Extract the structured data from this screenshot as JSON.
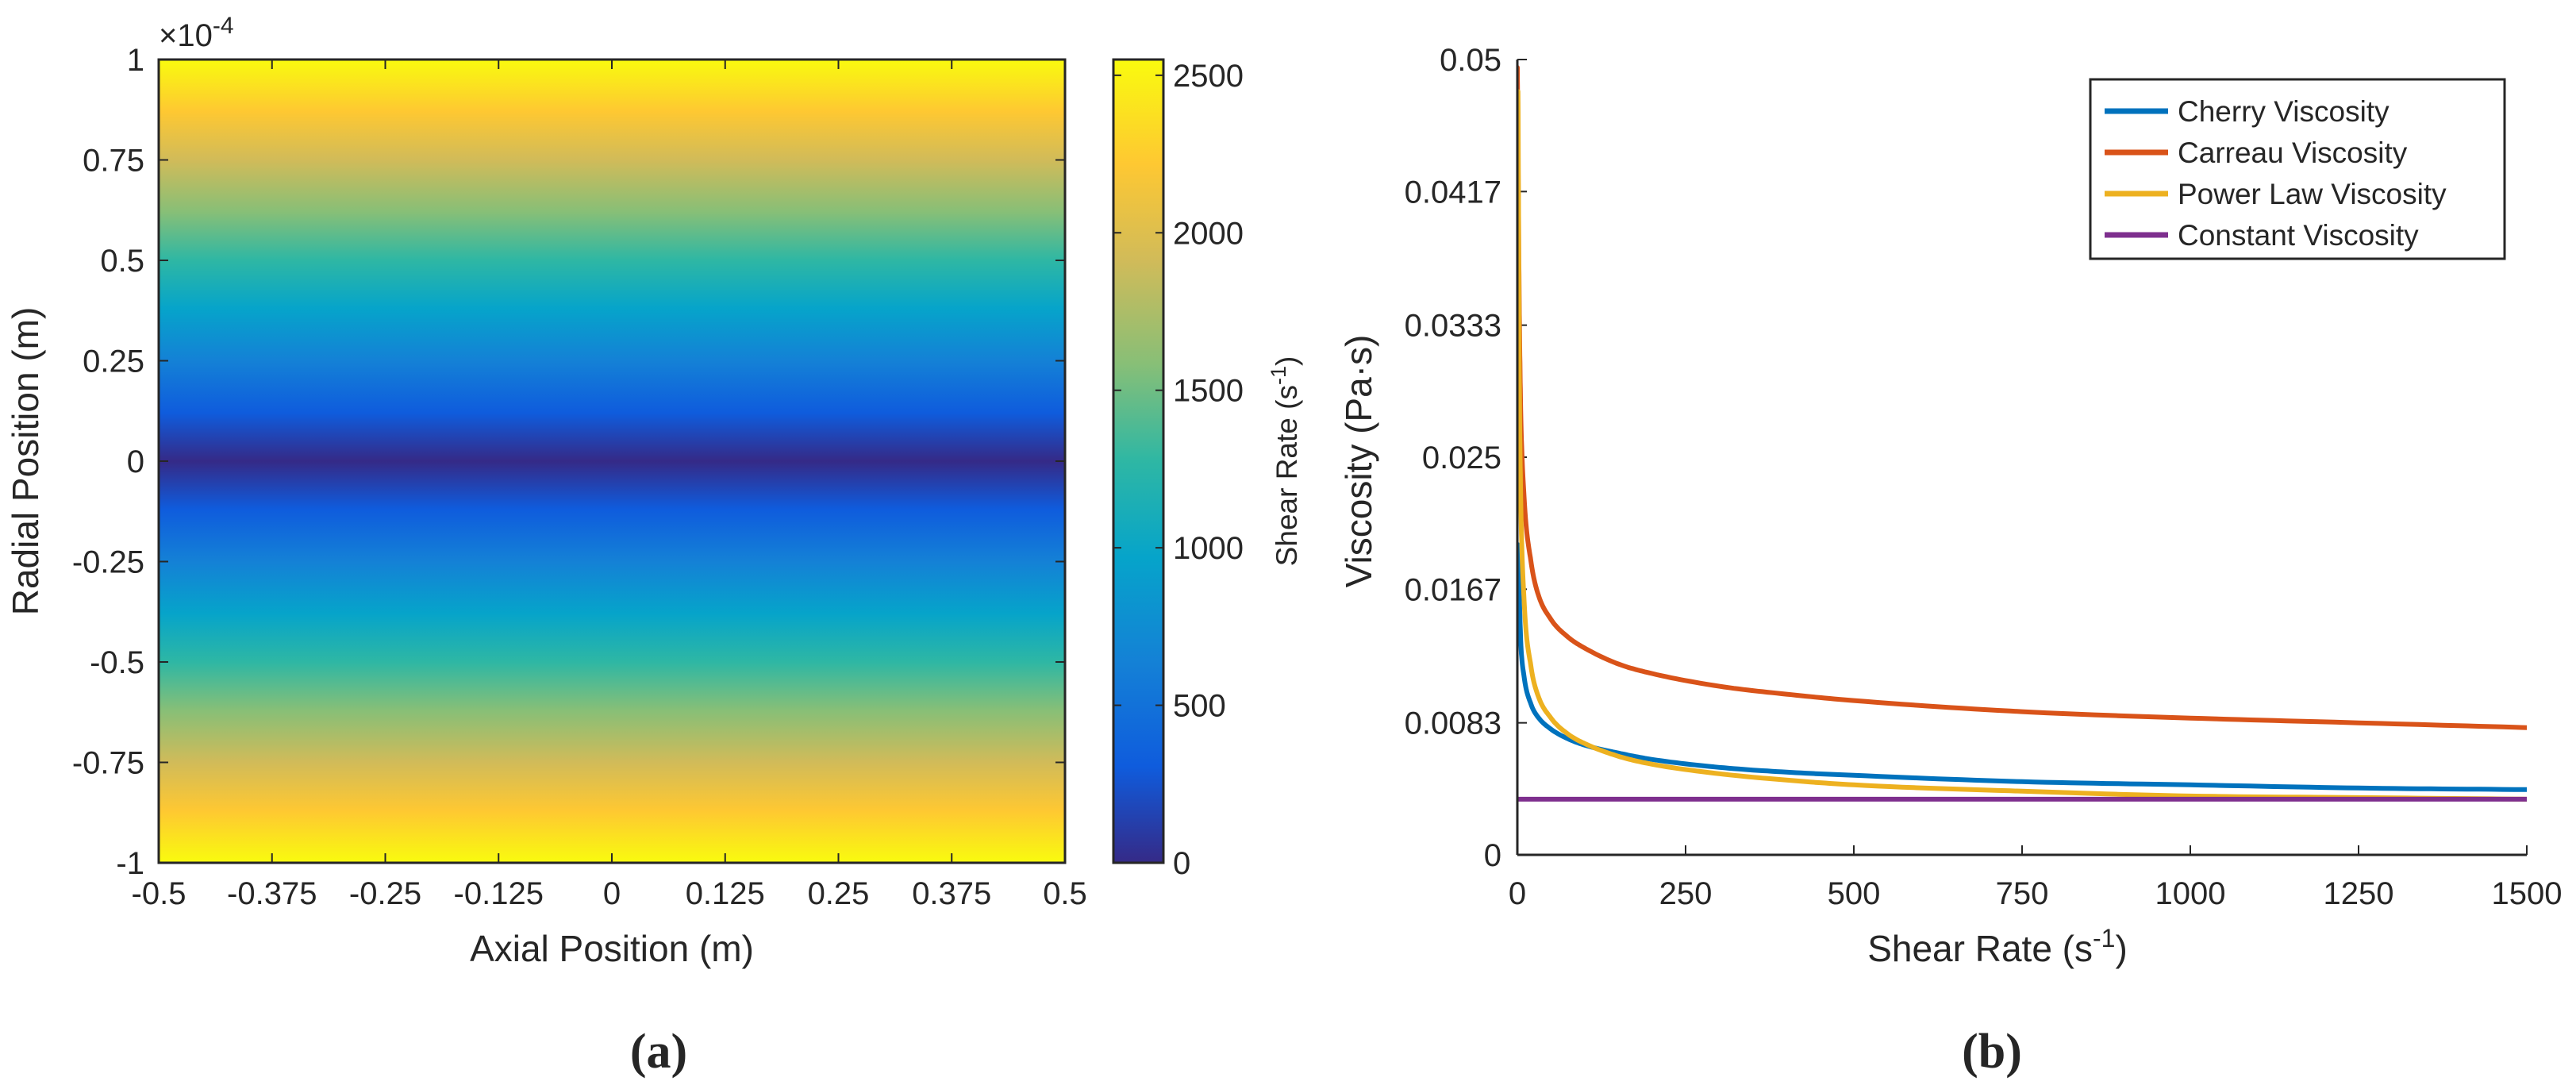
{
  "chart_data": [
    {
      "panel_label": "(a)",
      "type": "heatmap",
      "title": "",
      "xlabel": "Axial Position (m)",
      "ylabel": "Radial Position (m)",
      "xlim": [
        -0.5,
        0.5
      ],
      "ylim": [
        -1,
        1
      ],
      "y_multiplier": "×10",
      "y_multiplier_exponent": "-4",
      "x_ticks": [
        -0.5,
        -0.375,
        -0.25,
        -0.125,
        0,
        0.125,
        0.25,
        0.375,
        0.5
      ],
      "x_tick_labels": [
        "-0.5",
        "-0.375",
        "-0.25",
        "-0.125",
        "0",
        "0.125",
        "0.25",
        "0.375",
        "0.5"
      ],
      "y_ticks": [
        1,
        0.75,
        0.5,
        0.25,
        0,
        -0.25,
        -0.5,
        -0.75,
        -1
      ],
      "y_tick_labels": [
        "1",
        "0.75",
        "0.5",
        "0.25",
        "0",
        "-0.25",
        "-0.5",
        "-0.75",
        "-1"
      ],
      "field": "shear rate proportional to |radial position|, uniform along axial position",
      "value_at_center": 0,
      "value_at_wall": 2550,
      "colormap": "parula",
      "colorbar": {
        "label": "Shear Rate (s",
        "label_exponent": "-1",
        "label_close": ")",
        "clim": [
          0,
          2550
        ],
        "ticks": [
          0,
          500,
          1000,
          1500,
          2000,
          2500
        ],
        "tick_labels": [
          "0",
          "500",
          "1000",
          "1500",
          "2000",
          "2500"
        ]
      }
    },
    {
      "panel_label": "(b)",
      "type": "line",
      "title": "",
      "xlabel": "Shear Rate (s",
      "xlabel_exponent": "-1",
      "xlabel_close": ")",
      "ylabel": "Viscosity (Pa·s)",
      "xlim": [
        0,
        1500
      ],
      "ylim": [
        0,
        0.05
      ],
      "x_ticks": [
        0,
        250,
        500,
        750,
        1000,
        1250,
        1500
      ],
      "x_tick_labels": [
        "0",
        "250",
        "500",
        "750",
        "1000",
        "1250",
        "1500"
      ],
      "y_ticks": [
        0,
        0.0083,
        0.0167,
        0.025,
        0.0333,
        0.0417,
        0.05
      ],
      "y_tick_labels": [
        "0",
        "0.0083",
        "0.0167",
        "0.025",
        "0.0333",
        "0.0417",
        "0.05"
      ],
      "legend_position": "top-right",
      "series": [
        {
          "name": "Cherry Viscosity",
          "color": "#0072BD",
          "x": [
            1,
            5,
            10,
            20,
            30,
            50,
            75,
            100,
            150,
            200,
            300,
            400,
            500,
            750,
            1000,
            1250,
            1500
          ],
          "y": [
            0.0195,
            0.0135,
            0.0112,
            0.0095,
            0.0087,
            0.0079,
            0.0073,
            0.0069,
            0.0064,
            0.006,
            0.0055,
            0.0052,
            0.005,
            0.0046,
            0.0044,
            0.0042,
            0.0041
          ]
        },
        {
          "name": "Carreau Viscosity",
          "color": "#D95319",
          "x": [
            0,
            1,
            3,
            5,
            10,
            20,
            30,
            50,
            75,
            100,
            150,
            200,
            300,
            400,
            500,
            750,
            1000,
            1250,
            1500
          ],
          "y": [
            0.0495,
            0.044,
            0.034,
            0.028,
            0.0225,
            0.0185,
            0.0165,
            0.0148,
            0.0137,
            0.013,
            0.012,
            0.0114,
            0.0106,
            0.0101,
            0.0097,
            0.009,
            0.0086,
            0.0083,
            0.008
          ]
        },
        {
          "name": "Power Law Viscosity",
          "color": "#EDB120",
          "x": [
            1,
            3,
            5,
            10,
            20,
            30,
            50,
            75,
            100,
            150,
            200,
            300,
            400,
            500,
            750,
            1000,
            1250,
            1500
          ],
          "y": [
            0.048,
            0.03,
            0.0225,
            0.016,
            0.0119,
            0.0101,
            0.0086,
            0.0076,
            0.007,
            0.0062,
            0.0057,
            0.0051,
            0.0047,
            0.0044,
            0.004,
            0.0037,
            0.0036,
            0.0035
          ]
        },
        {
          "name": "Constant Viscosity",
          "color": "#7E2F8E",
          "x": [
            0,
            1500
          ],
          "y": [
            0.0035,
            0.0035
          ]
        }
      ]
    }
  ]
}
